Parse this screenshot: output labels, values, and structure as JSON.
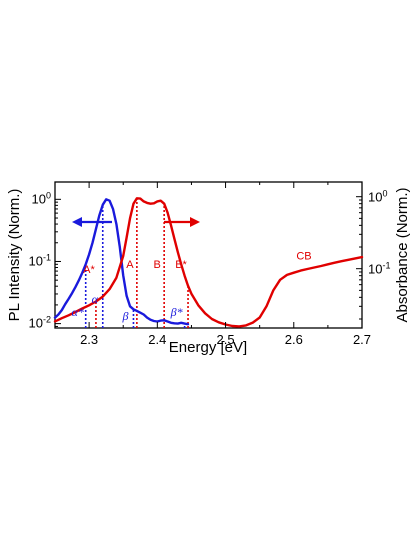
{
  "chart_data": {
    "type": "line",
    "xlabel": "Energy [eV]",
    "ylabel_left": "PL Intensity (Norm.)",
    "ylabel_right": "Absorbance (Norm.)",
    "xlim": [
      2.25,
      2.7
    ],
    "x_ticks": [
      "2.3",
      "2.4",
      "2.5",
      "2.6",
      "2.7"
    ],
    "y_left_scale": "log",
    "y_left_lim": [
      0.0085,
      1.9
    ],
    "y_left_ticks": [
      {
        "value": 1,
        "base": "10",
        "exp": "0"
      },
      {
        "value": 0.1,
        "base": "10",
        "exp": "-1"
      },
      {
        "value": 0.01,
        "base": "10",
        "exp": "-2"
      }
    ],
    "y_right_scale": "log",
    "y_right_lim": [
      0.015,
      1.6
    ],
    "y_right_ticks": [
      {
        "value": 1,
        "base": "10",
        "exp": "0"
      },
      {
        "value": 0.1,
        "base": "10",
        "exp": "-1"
      }
    ],
    "grid": false,
    "colors": {
      "pl": "#1a1adc",
      "abs": "#e00000"
    },
    "series": [
      {
        "axis": "left",
        "color": "#1a1adc",
        "points": [
          [
            2.25,
            0.0125
          ],
          [
            2.255,
            0.014
          ],
          [
            2.26,
            0.0165
          ],
          [
            2.265,
            0.0205
          ],
          [
            2.27,
            0.025
          ],
          [
            2.275,
            0.031
          ],
          [
            2.28,
            0.039
          ],
          [
            2.285,
            0.05
          ],
          [
            2.29,
            0.066
          ],
          [
            2.295,
            0.09
          ],
          [
            2.3,
            0.13
          ],
          [
            2.305,
            0.2
          ],
          [
            2.31,
            0.33
          ],
          [
            2.315,
            0.55
          ],
          [
            2.32,
            0.82
          ],
          [
            2.325,
            1.0
          ],
          [
            2.33,
            0.95
          ],
          [
            2.335,
            0.7
          ],
          [
            2.34,
            0.4
          ],
          [
            2.345,
            0.17
          ],
          [
            2.35,
            0.06
          ],
          [
            2.355,
            0.028
          ],
          [
            2.36,
            0.019
          ],
          [
            2.365,
            0.017
          ],
          [
            2.37,
            0.016
          ],
          [
            2.375,
            0.015
          ],
          [
            2.38,
            0.014
          ],
          [
            2.385,
            0.0125
          ],
          [
            2.39,
            0.0115
          ],
          [
            2.395,
            0.011
          ],
          [
            2.4,
            0.0108
          ],
          [
            2.405,
            0.0112
          ],
          [
            2.41,
            0.0113
          ],
          [
            2.415,
            0.0108
          ],
          [
            2.42,
            0.0103
          ],
          [
            2.425,
            0.0101
          ],
          [
            2.43,
            0.01
          ],
          [
            2.435,
            0.0103
          ],
          [
            2.44,
            0.01
          ],
          [
            2.445,
            0.0098
          ]
        ]
      },
      {
        "axis": "right",
        "color": "#e00000",
        "points": [
          [
            2.25,
            0.0185
          ],
          [
            2.26,
            0.0205
          ],
          [
            2.27,
            0.0225
          ],
          [
            2.28,
            0.025
          ],
          [
            2.29,
            0.028
          ],
          [
            2.3,
            0.031
          ],
          [
            2.31,
            0.035
          ],
          [
            2.32,
            0.041
          ],
          [
            2.33,
            0.052
          ],
          [
            2.34,
            0.075
          ],
          [
            2.35,
            0.15
          ],
          [
            2.355,
            0.27
          ],
          [
            2.36,
            0.5
          ],
          [
            2.365,
            0.8
          ],
          [
            2.37,
            0.95
          ],
          [
            2.375,
            0.94
          ],
          [
            2.38,
            0.86
          ],
          [
            2.385,
            0.82
          ],
          [
            2.39,
            0.8
          ],
          [
            2.395,
            0.81
          ],
          [
            2.4,
            0.86
          ],
          [
            2.405,
            0.88
          ],
          [
            2.41,
            0.8
          ],
          [
            2.415,
            0.6
          ],
          [
            2.42,
            0.4
          ],
          [
            2.425,
            0.26
          ],
          [
            2.43,
            0.17
          ],
          [
            2.435,
            0.115
          ],
          [
            2.44,
            0.08
          ],
          [
            2.445,
            0.058
          ],
          [
            2.45,
            0.045
          ],
          [
            2.46,
            0.031
          ],
          [
            2.47,
            0.024
          ],
          [
            2.48,
            0.02
          ],
          [
            2.49,
            0.018
          ],
          [
            2.5,
            0.0168
          ],
          [
            2.51,
            0.016
          ],
          [
            2.52,
            0.0158
          ],
          [
            2.53,
            0.0163
          ],
          [
            2.54,
            0.0178
          ],
          [
            2.55,
            0.021
          ],
          [
            2.56,
            0.03
          ],
          [
            2.57,
            0.05
          ],
          [
            2.58,
            0.07
          ],
          [
            2.59,
            0.082
          ],
          [
            2.6,
            0.088
          ],
          [
            2.61,
            0.094
          ],
          [
            2.62,
            0.099
          ],
          [
            2.63,
            0.104
          ],
          [
            2.64,
            0.109
          ],
          [
            2.65,
            0.115
          ],
          [
            2.66,
            0.121
          ],
          [
            2.67,
            0.127
          ],
          [
            2.68,
            0.133
          ],
          [
            2.69,
            0.139
          ],
          [
            2.7,
            0.145
          ]
        ]
      }
    ],
    "arrows": [
      {
        "points_to": "left",
        "color": "#1a1adc"
      },
      {
        "points_to": "right",
        "color": "#e00000"
      }
    ],
    "markers": [
      {
        "x": 2.295,
        "color": "#1a1adc",
        "label": "α*",
        "greek": true
      },
      {
        "x": 2.31,
        "color": "#e00000",
        "label": "A*",
        "greek": false
      },
      {
        "x": 2.32,
        "color": "#1a1adc",
        "label": "α",
        "greek": true
      },
      {
        "x": 2.365,
        "color": "#1a1adc",
        "label": "β",
        "greek": true
      },
      {
        "x": 2.37,
        "color": "#e00000",
        "label": "A",
        "greek": false
      },
      {
        "x": 2.41,
        "color": "#e00000",
        "label": "B",
        "greek": false
      },
      {
        "x": 2.44,
        "color": "#1a1adc",
        "label": "β*",
        "greek": true
      },
      {
        "x": 2.445,
        "color": "#e00000",
        "label": "B*",
        "greek": false
      }
    ],
    "annotations": [
      {
        "text": "CB",
        "x": 2.615,
        "color": "#e00000"
      }
    ]
  }
}
